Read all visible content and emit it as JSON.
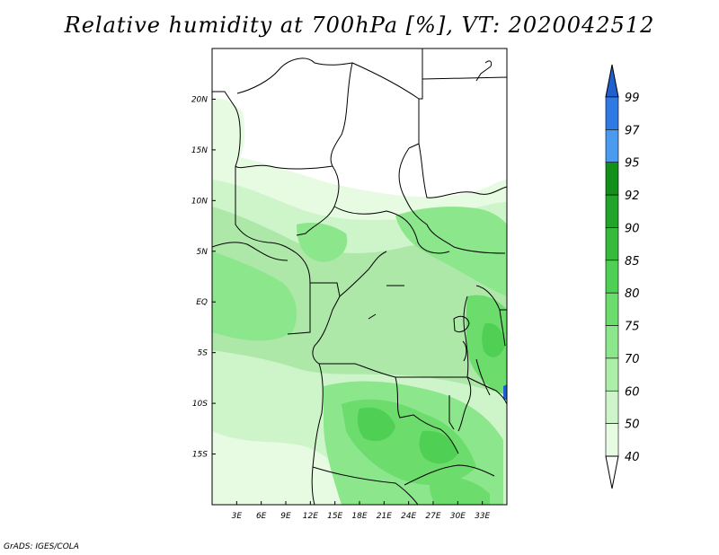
{
  "title": "Relative humidity at 700hPa [%], VT: 2020042512",
  "credit": "GrADS: IGES/COLA",
  "map": {
    "lon_range": [
      0,
      36
    ],
    "lat_range": [
      -20,
      25
    ],
    "x_ticks": [
      "3E",
      "6E",
      "9E",
      "12E",
      "15E",
      "18E",
      "21E",
      "24E",
      "27E",
      "30E",
      "33E"
    ],
    "y_ticks": [
      "20N",
      "15N",
      "10N",
      "5N",
      "EQ",
      "5S",
      "10S",
      "15S"
    ]
  },
  "colorbar": {
    "levels": [
      "99",
      "97",
      "95",
      "92",
      "90",
      "85",
      "80",
      "75",
      "70",
      "60",
      "50",
      "40"
    ],
    "colors": {
      "above_97": "#1f5fd0",
      "97_99": "#2f79e4",
      "95_97": "#4a9af0",
      "92_95": "#13901a",
      "90_92": "#22a42a",
      "85_90": "#37b93c",
      "80_85": "#4fcf53",
      "75_80": "#6cdc6d",
      "70_75": "#8ce68b",
      "60_70": "#ade fa9",
      "50_60": "#cdf5c9",
      "40_50": "#e6fbe2",
      "below_40": "#ffffff"
    }
  }
}
